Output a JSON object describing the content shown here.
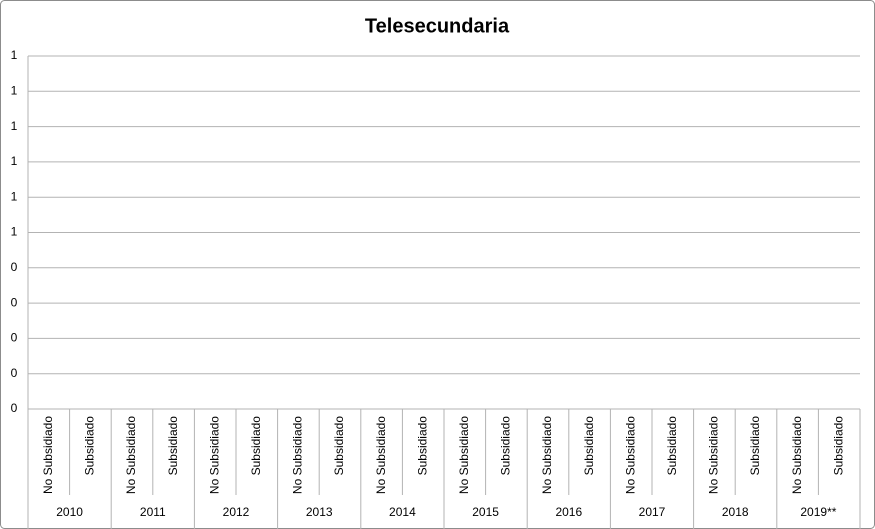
{
  "chart_data": {
    "type": "bar",
    "title": "Telesecundaria",
    "groups": [
      "2010",
      "2011",
      "2012",
      "2013",
      "2014",
      "2015",
      "2016",
      "2017",
      "2018",
      "2019**"
    ],
    "categories": [
      "No Subsidiado",
      "Subsidiado",
      "No Subsidiado",
      "Subsidiado",
      "No Subsidiado",
      "Subsidiado",
      "No Subsidiado",
      "Subsidiado",
      "No Subsidiado",
      "Subsidiado",
      "No Subsidiado",
      "Subsidiado",
      "No Subsidiado",
      "Subsidiado",
      "No Subsidiado",
      "Subsidiado",
      "No Subsidiado",
      "Subsidiado",
      "No Subsidiado",
      "Subsidiado"
    ],
    "values": [
      null,
      null,
      null,
      null,
      null,
      null,
      null,
      null,
      null,
      null,
      null,
      null,
      null,
      null,
      null,
      null,
      null,
      null,
      null,
      null
    ],
    "ylim": [
      0,
      1
    ],
    "yticks": [
      0,
      {
        "value": 0.1,
        "label": "0"
      },
      {
        "value": 0.2,
        "label": "0"
      },
      {
        "value": 0.3,
        "label": "0"
      },
      {
        "value": 0.4,
        "label": "0"
      },
      {
        "value": 0.5,
        "label": "1"
      },
      {
        "value": 0.6,
        "label": "1"
      },
      {
        "value": 0.7,
        "label": "1"
      },
      {
        "value": 0.8,
        "label": "1"
      },
      {
        "value": 0.9,
        "label": "1"
      },
      1
    ],
    "grid": true
  }
}
